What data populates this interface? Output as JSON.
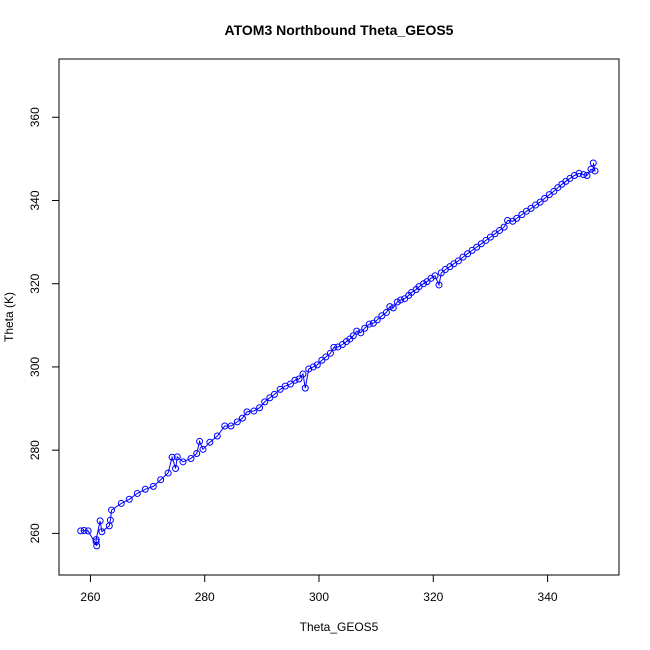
{
  "chart_data": {
    "type": "scatter",
    "title": "ATOM3 Northbound Theta_GEOS5",
    "xlabel": "Theta_GEOS5",
    "ylabel": "Theta (K)",
    "xlim": [
      254.5,
      352.5
    ],
    "ylim": [
      250,
      374
    ],
    "x_ticks": [
      260,
      280,
      300,
      320,
      340
    ],
    "y_ticks": [
      260,
      280,
      300,
      320,
      340,
      360
    ],
    "x_tick_labels": [
      "260",
      "280",
      "300",
      "320",
      "340"
    ],
    "y_tick_labels": [
      "260",
      "280",
      "300",
      "320",
      "340",
      "360"
    ],
    "grid": false,
    "legend": "none",
    "marker": "open-circle",
    "line": "connected",
    "color": "#0000ff",
    "series": [
      {
        "values": [
          [
            258.3,
            260.6
          ],
          [
            258.9,
            260.7
          ],
          [
            259.6,
            260.6
          ],
          [
            261.1,
            257.0
          ],
          [
            261.0,
            258.0
          ],
          [
            261.0,
            258.5
          ],
          [
            261.7,
            263.0
          ],
          [
            262.0,
            260.4
          ],
          [
            263.3,
            261.8
          ],
          [
            263.5,
            263.2
          ],
          [
            263.7,
            265.6
          ],
          [
            265.4,
            267.2
          ],
          [
            266.8,
            268.2
          ],
          [
            268.2,
            269.6
          ],
          [
            269.6,
            270.6
          ],
          [
            271.0,
            271.3
          ],
          [
            272.3,
            272.9
          ],
          [
            273.6,
            274.5
          ],
          [
            274.3,
            278.3
          ],
          [
            274.9,
            275.6
          ],
          [
            275.2,
            278.4
          ],
          [
            276.2,
            277.2
          ],
          [
            277.6,
            278.0
          ],
          [
            278.6,
            279.2
          ],
          [
            279.1,
            282.1
          ],
          [
            279.7,
            280.2
          ],
          [
            280.9,
            281.9
          ],
          [
            282.2,
            283.4
          ],
          [
            283.5,
            285.8
          ],
          [
            284.6,
            285.8
          ],
          [
            285.7,
            286.8
          ],
          [
            286.6,
            287.7
          ],
          [
            287.4,
            289.2
          ],
          [
            288.6,
            289.4
          ],
          [
            289.6,
            290.2
          ],
          [
            290.5,
            291.6
          ],
          [
            291.4,
            292.6
          ],
          [
            292.2,
            293.4
          ],
          [
            293.2,
            294.6
          ],
          [
            294.1,
            295.4
          ],
          [
            295.0,
            295.9
          ],
          [
            295.8,
            296.8
          ],
          [
            296.5,
            297.1
          ],
          [
            297.2,
            298.3
          ],
          [
            297.6,
            294.9
          ],
          [
            298.2,
            299.5
          ],
          [
            299.0,
            300.0
          ],
          [
            299.7,
            300.5
          ],
          [
            300.5,
            301.6
          ],
          [
            301.2,
            302.4
          ],
          [
            302.0,
            303.3
          ],
          [
            302.6,
            304.7
          ],
          [
            303.3,
            304.8
          ],
          [
            304.1,
            305.4
          ],
          [
            304.8,
            306.1
          ],
          [
            305.4,
            306.7
          ],
          [
            306.0,
            307.5
          ],
          [
            306.6,
            308.6
          ],
          [
            307.3,
            308.2
          ],
          [
            308.0,
            309.3
          ],
          [
            308.8,
            310.3
          ],
          [
            309.5,
            310.5
          ],
          [
            310.2,
            311.3
          ],
          [
            311.0,
            312.3
          ],
          [
            311.8,
            313.1
          ],
          [
            312.4,
            314.5
          ],
          [
            313.0,
            314.2
          ],
          [
            313.7,
            315.6
          ],
          [
            314.3,
            316.1
          ],
          [
            315.0,
            316.4
          ],
          [
            315.7,
            317.2
          ],
          [
            316.2,
            317.9
          ],
          [
            317.0,
            318.6
          ],
          [
            317.5,
            319.3
          ],
          [
            318.3,
            320.0
          ],
          [
            318.9,
            320.5
          ],
          [
            319.6,
            321.3
          ],
          [
            320.3,
            321.9
          ],
          [
            321.0,
            319.7
          ],
          [
            321.4,
            322.6
          ],
          [
            322.1,
            323.4
          ],
          [
            322.9,
            324.1
          ],
          [
            323.6,
            324.8
          ],
          [
            324.4,
            325.5
          ],
          [
            325.2,
            326.4
          ],
          [
            326.0,
            327.2
          ],
          [
            326.8,
            328.0
          ],
          [
            327.6,
            328.8
          ],
          [
            328.4,
            329.6
          ],
          [
            329.2,
            330.4
          ],
          [
            330.0,
            331.2
          ],
          [
            330.8,
            332.0
          ],
          [
            331.6,
            332.8
          ],
          [
            332.4,
            333.6
          ],
          [
            333.0,
            335.2
          ],
          [
            333.9,
            335.0
          ],
          [
            334.6,
            335.7
          ],
          [
            335.5,
            336.6
          ],
          [
            336.3,
            337.4
          ],
          [
            337.1,
            338.1
          ],
          [
            337.9,
            338.9
          ],
          [
            338.7,
            339.6
          ],
          [
            339.5,
            340.5
          ],
          [
            340.3,
            341.4
          ],
          [
            341.1,
            342.2
          ],
          [
            341.8,
            343.1
          ],
          [
            342.5,
            343.9
          ],
          [
            343.2,
            344.6
          ],
          [
            343.9,
            345.3
          ],
          [
            344.7,
            346.0
          ],
          [
            345.5,
            346.5
          ],
          [
            346.3,
            346.2
          ],
          [
            346.9,
            346.0
          ],
          [
            347.6,
            347.5
          ],
          [
            348.3,
            347.1
          ],
          [
            348.0,
            349.0
          ]
        ]
      }
    ]
  }
}
